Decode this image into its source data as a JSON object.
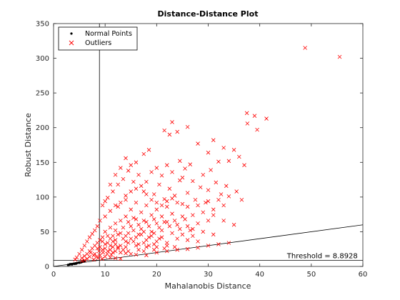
{
  "chart_data": {
    "type": "scatter",
    "title": "Distance-Distance Plot",
    "xlabel": "Mahalanobis Distance",
    "ylabel": "Robust Distance",
    "xlim": [
      0,
      60
    ],
    "ylim": [
      0,
      350
    ],
    "xticks": [
      0,
      10,
      20,
      30,
      40,
      50,
      60
    ],
    "yticks": [
      0,
      50,
      100,
      150,
      200,
      250,
      300,
      350
    ],
    "grid": false,
    "legend_position": "top-left",
    "series": [
      {
        "name": "Normal Points",
        "marker": "dot",
        "color": "#000000",
        "points": [
          [
            3.0,
            2.5
          ],
          [
            3.3,
            3.0
          ],
          [
            3.5,
            3.5
          ],
          [
            3.8,
            3.8
          ],
          [
            4.0,
            4.2
          ],
          [
            4.3,
            4.5
          ],
          [
            4.6,
            5.0
          ],
          [
            4.9,
            5.5
          ],
          [
            5.2,
            6.0
          ],
          [
            5.5,
            6.4
          ],
          [
            5.8,
            7.0
          ],
          [
            6.0,
            7.5
          ],
          [
            3.6,
            2.8
          ],
          [
            4.1,
            3.6
          ],
          [
            4.4,
            4.0
          ],
          [
            5.0,
            5.2
          ],
          [
            5.3,
            5.8
          ],
          [
            3.2,
            3.4
          ],
          [
            2.8,
            2.2
          ]
        ]
      },
      {
        "name": "Outliers",
        "marker": "x",
        "color": "#ff0000",
        "points": [
          [
            48.8,
            315
          ],
          [
            55.5,
            302
          ],
          [
            37.5,
            221
          ],
          [
            39.0,
            217
          ],
          [
            41.3,
            213
          ],
          [
            37.6,
            206
          ],
          [
            39.5,
            197
          ],
          [
            23.0,
            208
          ],
          [
            26.0,
            201
          ],
          [
            21.5,
            196
          ],
          [
            24.0,
            194
          ],
          [
            22.5,
            190
          ],
          [
            31.0,
            182
          ],
          [
            28.0,
            177
          ],
          [
            33.0,
            171
          ],
          [
            30.0,
            164
          ],
          [
            35.0,
            168
          ],
          [
            36.0,
            158
          ],
          [
            34.0,
            152
          ],
          [
            37.0,
            146
          ],
          [
            32.0,
            151
          ],
          [
            30.5,
            139
          ],
          [
            29.0,
            132
          ],
          [
            25.0,
            128
          ],
          [
            27.0,
            123
          ],
          [
            31.5,
            121
          ],
          [
            33.5,
            116
          ],
          [
            35.5,
            108
          ],
          [
            34.0,
            101
          ],
          [
            36.5,
            96
          ],
          [
            32.5,
            104
          ],
          [
            30.0,
            110
          ],
          [
            28.5,
            114
          ],
          [
            18.5,
            168
          ],
          [
            17.5,
            162
          ],
          [
            16.0,
            150
          ],
          [
            15.0,
            146
          ],
          [
            14.5,
            138
          ],
          [
            13.5,
            126
          ],
          [
            12.5,
            118
          ],
          [
            11.5,
            108
          ],
          [
            10.5,
            99
          ],
          [
            12.0,
            132
          ],
          [
            13.0,
            142
          ],
          [
            14.0,
            156
          ],
          [
            11.0,
            118
          ],
          [
            10.0,
            94
          ],
          [
            9.5,
            88
          ],
          [
            20.0,
            142
          ],
          [
            22.0,
            146
          ],
          [
            24.5,
            152
          ],
          [
            19.0,
            136
          ],
          [
            21.0,
            131
          ],
          [
            23.0,
            136
          ],
          [
            25.5,
            141
          ],
          [
            26.5,
            147
          ],
          [
            20.5,
            118
          ],
          [
            22.5,
            112
          ],
          [
            24.5,
            124
          ],
          [
            18.0,
            122
          ],
          [
            16.5,
            132
          ],
          [
            15.5,
            122
          ],
          [
            17.5,
            108
          ],
          [
            19.5,
            104
          ],
          [
            21.5,
            97
          ],
          [
            23.5,
            102
          ],
          [
            26.0,
            106
          ],
          [
            27.5,
            96
          ],
          [
            29.5,
            92
          ],
          [
            25.0,
            90
          ],
          [
            22.0,
            86
          ],
          [
            20.0,
            82
          ],
          [
            18.0,
            88
          ],
          [
            16.0,
            92
          ],
          [
            14.0,
            96
          ],
          [
            12.5,
            86
          ],
          [
            11.0,
            80
          ],
          [
            10.0,
            72
          ],
          [
            9.0,
            66
          ],
          [
            8.5,
            58
          ],
          [
            8.0,
            52
          ],
          [
            7.5,
            47
          ],
          [
            7.0,
            42
          ],
          [
            6.5,
            36
          ],
          [
            6.0,
            30
          ],
          [
            5.5,
            24
          ],
          [
            5.0,
            18
          ],
          [
            4.5,
            13
          ],
          [
            4.2,
            10
          ],
          [
            15.0,
            82
          ],
          [
            17.0,
            78
          ],
          [
            19.0,
            74
          ],
          [
            21.0,
            72
          ],
          [
            23.0,
            76
          ],
          [
            25.0,
            72
          ],
          [
            27.0,
            74
          ],
          [
            29.0,
            78
          ],
          [
            31.0,
            82
          ],
          [
            14.0,
            72
          ],
          [
            16.0,
            68
          ],
          [
            18.0,
            64
          ],
          [
            20.0,
            62
          ],
          [
            22.0,
            64
          ],
          [
            24.0,
            60
          ],
          [
            26.0,
            58
          ],
          [
            28.0,
            62
          ],
          [
            30.0,
            66
          ],
          [
            12.0,
            62
          ],
          [
            13.0,
            66
          ],
          [
            15.0,
            58
          ],
          [
            17.0,
            54
          ],
          [
            19.0,
            50
          ],
          [
            21.0,
            52
          ],
          [
            23.0,
            48
          ],
          [
            25.0,
            46
          ],
          [
            27.0,
            44
          ],
          [
            11.0,
            56
          ],
          [
            12.0,
            52
          ],
          [
            13.0,
            48
          ],
          [
            14.0,
            44
          ],
          [
            15.0,
            40
          ],
          [
            16.0,
            42
          ],
          [
            18.0,
            38
          ],
          [
            20.0,
            36
          ],
          [
            22.0,
            34
          ],
          [
            10.0,
            50
          ],
          [
            10.5,
            44
          ],
          [
            11.0,
            40
          ],
          [
            11.5,
            36
          ],
          [
            12.0,
            32
          ],
          [
            13.0,
            30
          ],
          [
            14.0,
            28
          ],
          [
            9.5,
            42
          ],
          [
            9.0,
            38
          ],
          [
            8.5,
            34
          ],
          [
            8.0,
            30
          ],
          [
            7.5,
            26
          ],
          [
            7.0,
            22
          ],
          [
            6.5,
            18
          ],
          [
            6.0,
            15
          ],
          [
            5.5,
            12
          ],
          [
            9.0,
            28
          ],
          [
            10.0,
            26
          ],
          [
            11.0,
            24
          ],
          [
            12.0,
            22
          ],
          [
            13.0,
            20
          ],
          [
            14.0,
            19
          ],
          [
            15.0,
            18
          ],
          [
            16.0,
            17
          ],
          [
            18.0,
            16
          ],
          [
            20.0,
            20
          ],
          [
            22.0,
            22
          ],
          [
            24.0,
            24
          ],
          [
            26.0,
            25
          ],
          [
            28.0,
            27
          ],
          [
            30.0,
            30
          ],
          [
            32.0,
            32
          ],
          [
            34.0,
            34
          ],
          [
            8.0,
            18
          ],
          [
            9.0,
            16
          ],
          [
            10.0,
            14
          ],
          [
            11.0,
            13
          ],
          [
            12.0,
            12
          ],
          [
            13.0,
            11
          ],
          [
            7.0,
            14
          ],
          [
            6.5,
            11
          ],
          [
            6.0,
            9
          ],
          [
            5.5,
            8
          ],
          [
            16.5,
            24
          ],
          [
            17.5,
            22
          ],
          [
            19.5,
            24
          ],
          [
            21.5,
            26
          ],
          [
            23.5,
            28
          ],
          [
            12.0,
            88
          ],
          [
            13.0,
            92
          ],
          [
            14.0,
            102
          ],
          [
            15.0,
            108
          ],
          [
            16.0,
            112
          ],
          [
            17.0,
            116
          ],
          [
            18.0,
            104
          ],
          [
            19.0,
            96
          ],
          [
            20.0,
            92
          ],
          [
            21.0,
            88
          ],
          [
            22.0,
            94
          ],
          [
            23.0,
            98
          ],
          [
            24.0,
            92
          ],
          [
            26.0,
            86
          ],
          [
            28.0,
            88
          ],
          [
            30.0,
            94
          ],
          [
            32.0,
            96
          ],
          [
            33.0,
            88
          ],
          [
            31.0,
            74
          ],
          [
            33.0,
            66
          ],
          [
            35.0,
            60
          ],
          [
            27.0,
            54
          ],
          [
            29.0,
            50
          ],
          [
            31.0,
            46
          ],
          [
            24.0,
            40
          ],
          [
            26.0,
            38
          ],
          [
            28.0,
            36
          ],
          [
            17.0,
            46
          ],
          [
            19.0,
            44
          ],
          [
            21.0,
            42
          ],
          [
            10.0,
            32
          ],
          [
            11.0,
            30
          ],
          [
            12.5,
            28
          ],
          [
            14.5,
            34
          ],
          [
            16.5,
            32
          ],
          [
            18.5,
            30
          ],
          [
            8.8,
            22
          ],
          [
            9.6,
            20
          ],
          [
            10.4,
            18
          ],
          [
            11.2,
            17
          ],
          [
            7.8,
            10
          ],
          [
            8.6,
            12
          ],
          [
            9.4,
            11
          ],
          [
            15.5,
            70
          ],
          [
            17.5,
            66
          ],
          [
            19.5,
            68
          ],
          [
            21.5,
            64
          ],
          [
            23.5,
            66
          ],
          [
            25.5,
            68
          ],
          [
            14.5,
            64
          ],
          [
            16.5,
            60
          ],
          [
            18.5,
            58
          ],
          [
            20.5,
            56
          ],
          [
            22.5,
            58
          ],
          [
            24.5,
            54
          ],
          [
            26.5,
            52
          ],
          [
            13.5,
            56
          ],
          [
            15.5,
            52
          ],
          [
            17.5,
            50
          ],
          [
            19.5,
            48
          ],
          [
            12.5,
            46
          ],
          [
            14.5,
            48
          ],
          [
            16.5,
            46
          ],
          [
            18.5,
            42
          ],
          [
            20.5,
            40
          ],
          [
            11.5,
            44
          ],
          [
            13.5,
            40
          ],
          [
            15.5,
            36
          ],
          [
            17.5,
            34
          ],
          [
            19.5,
            32
          ],
          [
            12.0,
            38
          ],
          [
            14.0,
            36
          ],
          [
            16.0,
            30
          ],
          [
            18.0,
            28
          ],
          [
            20.0,
            28
          ],
          [
            22.0,
            30
          ],
          [
            9.5,
            36
          ],
          [
            10.5,
            34
          ],
          [
            11.5,
            28
          ],
          [
            12.5,
            26
          ],
          [
            13.5,
            24
          ],
          [
            14.5,
            22
          ],
          [
            8.5,
            26
          ],
          [
            9.5,
            24
          ],
          [
            10.5,
            22
          ],
          [
            11.5,
            20
          ],
          [
            7.2,
            20
          ],
          [
            7.8,
            16
          ],
          [
            8.4,
            14
          ]
        ]
      }
    ],
    "lines": [
      {
        "name": "vertical_cutoff",
        "type": "vertical",
        "x": 8.9
      },
      {
        "name": "horizontal_threshold",
        "type": "horizontal",
        "y": 8.8928
      },
      {
        "name": "diagonal",
        "type": "segment",
        "x0": 0,
        "y0": 0,
        "x1": 60,
        "y1": 60
      }
    ],
    "annotation": {
      "text": "Threshold = 8.8928",
      "x": 59,
      "y": 12
    }
  }
}
